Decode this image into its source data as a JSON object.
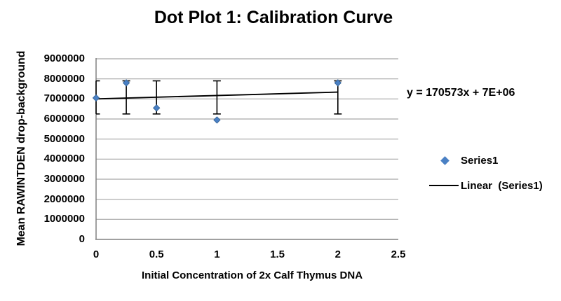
{
  "title": "Dot Plot 1: Calibration Curve",
  "equation_label": "y = 170573x + 7E+06",
  "legend": {
    "position": "right",
    "items": [
      {
        "label": "Series1",
        "marker": "diamond"
      },
      {
        "label": "Linear  (Series1)",
        "marker": "line"
      }
    ]
  },
  "colors": {
    "marker_blue": "#4A80C4",
    "marker_edge": "#2E5F94",
    "gridline_gray": "#A6A6A6",
    "axis_gray": "#808080",
    "trendline_black": "#000000",
    "error_bar_black": "#000000",
    "text_black": "#000000",
    "background": "#ffffff"
  },
  "chart_data": {
    "type": "scatter",
    "title": "Dot Plot 1: Calibration Curve",
    "xlabel": "Initial Concentration of 2x Calf Thymus DNA",
    "ylabel": "Mean RAWINTDEN drop-background",
    "xlim": [
      0,
      2.5
    ],
    "ylim": [
      0,
      9000000
    ],
    "x_ticks": [
      0,
      0.5,
      1,
      1.5,
      2,
      2.5
    ],
    "x_tick_labels": [
      "0",
      "0.5",
      "1",
      "1.5",
      "2",
      "2.5"
    ],
    "y_ticks": [
      0,
      1000000,
      2000000,
      3000000,
      4000000,
      5000000,
      6000000,
      7000000,
      8000000,
      9000000
    ],
    "y_tick_labels": [
      "0",
      "1000000",
      "2000000",
      "3000000",
      "4000000",
      "5000000",
      "6000000",
      "7000000",
      "8000000",
      "9000000"
    ],
    "grid": "horizontal-major",
    "legend_position": "right",
    "annotation": "y = 170573x + 7E+06",
    "series": [
      {
        "name": "Series1",
        "type": "scatter",
        "marker": "diamond",
        "x": [
          0,
          0.25,
          0.5,
          1,
          2
        ],
        "y": [
          7050000,
          7800000,
          6550000,
          5950000,
          7800000
        ],
        "error_bars": {
          "style": "fixed-band",
          "top": 7900000,
          "bottom": 6250000
        }
      },
      {
        "name": "Linear  (Series1)",
        "type": "linear-trendline",
        "slope": 170573,
        "intercept": 7000000,
        "x_range": [
          0,
          2
        ]
      }
    ]
  }
}
